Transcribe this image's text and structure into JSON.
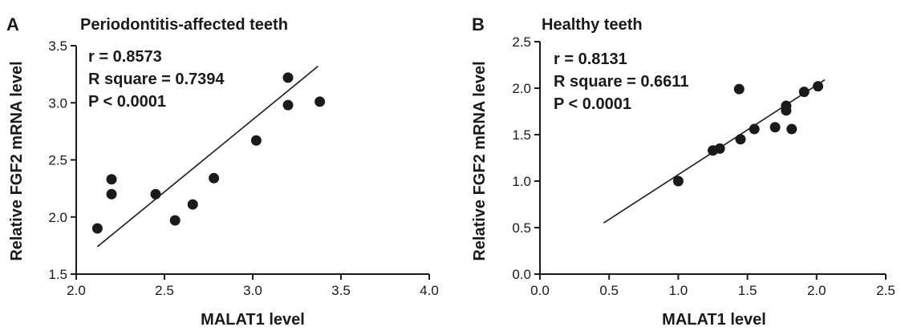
{
  "chart_data": [
    {
      "type": "scatter",
      "panel": "A",
      "title": "Periodontitis-affected teeth",
      "xlabel": "MALAT1 level",
      "ylabel": "Relative FGF2 mRNA level",
      "xlim": [
        2.0,
        4.0
      ],
      "ylim": [
        1.5,
        3.5
      ],
      "xticks": [
        "2.0",
        "2.5",
        "3.0",
        "3.5",
        "4.0"
      ],
      "yticks": [
        "1.5",
        "2.0",
        "2.5",
        "3.0",
        "3.5"
      ],
      "stats": [
        "r = 0.8573",
        "R square = 0.7394",
        "P < 0.0001"
      ],
      "points": [
        {
          "x": 2.12,
          "y": 1.9
        },
        {
          "x": 2.2,
          "y": 2.33
        },
        {
          "x": 2.2,
          "y": 2.2
        },
        {
          "x": 2.45,
          "y": 2.2
        },
        {
          "x": 2.56,
          "y": 1.97
        },
        {
          "x": 2.66,
          "y": 2.11
        },
        {
          "x": 2.78,
          "y": 2.34
        },
        {
          "x": 3.02,
          "y": 2.67
        },
        {
          "x": 3.2,
          "y": 3.22
        },
        {
          "x": 3.2,
          "y": 2.98
        },
        {
          "x": 3.38,
          "y": 3.01
        }
      ],
      "fit_line": [
        {
          "x": 2.12,
          "y": 1.74
        },
        {
          "x": 3.37,
          "y": 3.32
        }
      ],
      "grid": false
    },
    {
      "type": "scatter",
      "panel": "B",
      "title": "Healthy teeth",
      "xlabel": "MALAT1 level",
      "ylabel": "Relative FGF2 mRNA level",
      "xlim": [
        0.0,
        2.5
      ],
      "ylim": [
        0.0,
        2.5
      ],
      "xticks": [
        "0.0",
        "0.5",
        "1.0",
        "1.5",
        "2.0",
        "2.5"
      ],
      "yticks": [
        "0.0",
        "0.5",
        "1.0",
        "1.5",
        "2.0",
        "2.5"
      ],
      "stats": [
        "r = 0.8131",
        "R square = 0.6611",
        "P < 0.0001"
      ],
      "points": [
        {
          "x": 1.0,
          "y": 1.0
        },
        {
          "x": 1.25,
          "y": 1.33
        },
        {
          "x": 1.3,
          "y": 1.35
        },
        {
          "x": 1.44,
          "y": 1.99
        },
        {
          "x": 1.45,
          "y": 1.45
        },
        {
          "x": 1.55,
          "y": 1.56
        },
        {
          "x": 1.7,
          "y": 1.58
        },
        {
          "x": 1.78,
          "y": 1.76
        },
        {
          "x": 1.78,
          "y": 1.81
        },
        {
          "x": 1.82,
          "y": 1.56
        },
        {
          "x": 1.91,
          "y": 1.96
        },
        {
          "x": 2.01,
          "y": 2.02
        }
      ],
      "fit_line": [
        {
          "x": 0.46,
          "y": 0.55
        },
        {
          "x": 2.06,
          "y": 2.09
        }
      ],
      "grid": false
    }
  ]
}
